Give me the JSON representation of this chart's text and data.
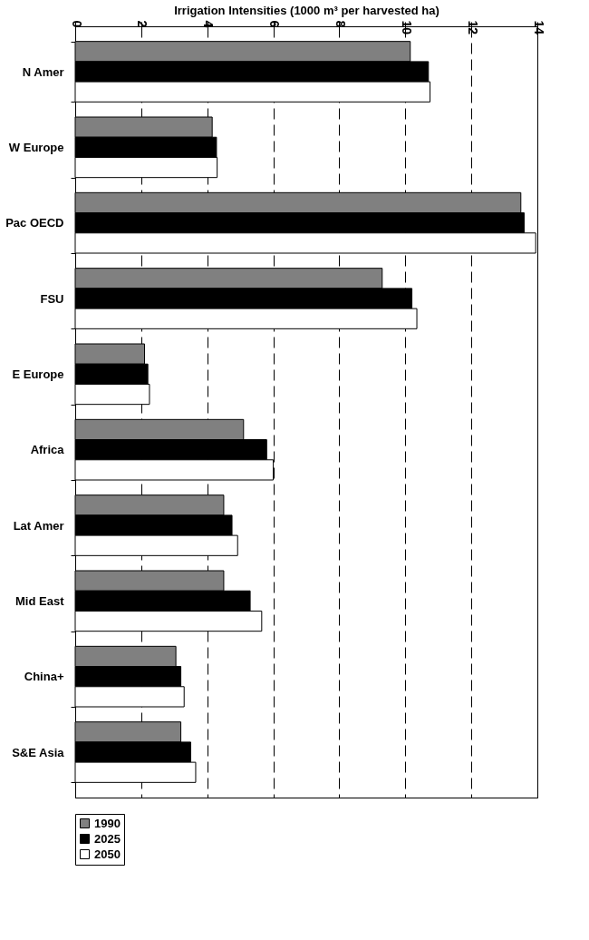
{
  "chart_data": {
    "type": "bar",
    "orientation": "horizontal",
    "xlabel": "Irrigation Intensities (1000 m³ per harvested ha)",
    "categories": [
      "N Amer",
      "W Europe",
      "Pac OECD",
      "FSU",
      "E Europe",
      "Africa",
      "Lat Amer",
      "Mid East",
      "China+",
      "S&E Asia"
    ],
    "series": [
      {
        "name": "1990",
        "color": "#808080",
        "values": [
          10.15,
          4.15,
          13.5,
          9.3,
          2.1,
          5.1,
          4.5,
          4.5,
          3.05,
          3.2
        ]
      },
      {
        "name": "2025",
        "color": "#000000",
        "values": [
          10.7,
          4.28,
          13.6,
          10.2,
          2.2,
          5.8,
          4.75,
          5.3,
          3.2,
          3.5
        ]
      },
      {
        "name": "2050",
        "color": "#ffffff",
        "values": [
          10.75,
          4.3,
          13.95,
          10.35,
          2.25,
          6.0,
          4.92,
          5.65,
          3.3,
          3.65
        ]
      }
    ],
    "xlim": [
      0,
      14
    ],
    "xticks": [
      0,
      2,
      4,
      6,
      8,
      10,
      12,
      14
    ],
    "grid": "x",
    "legend": "bottom"
  }
}
